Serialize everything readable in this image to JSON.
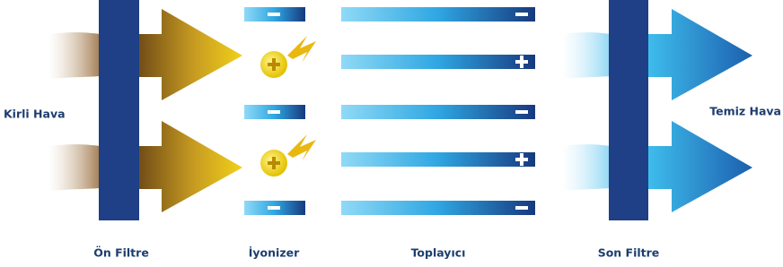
{
  "labels": {
    "input": "Kirli Hava",
    "output": "Temiz Hava"
  },
  "stages": [
    "Ön Filtre",
    "İyonizer",
    "Toplayıcı",
    "Son Filtre"
  ]
}
